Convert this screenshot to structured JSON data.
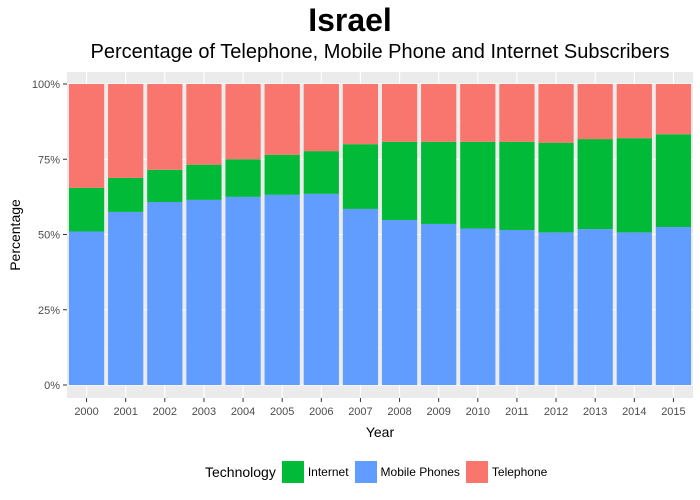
{
  "chart_data": {
    "type": "bar",
    "stacked": true,
    "title": "Israel",
    "subtitle": "Percentage of Telephone, Mobile Phone and Internet Subscribers",
    "xlabel": "Year",
    "ylabel": "Percentage",
    "ylim": [
      0,
      100
    ],
    "yticks": [
      "0%",
      "25%",
      "50%",
      "75%",
      "100%"
    ],
    "ytick_values": [
      0,
      25,
      50,
      75,
      100
    ],
    "categories": [
      "2000",
      "2001",
      "2002",
      "2003",
      "2004",
      "2005",
      "2006",
      "2007",
      "2008",
      "2009",
      "2010",
      "2011",
      "2012",
      "2013",
      "2014",
      "2015"
    ],
    "series": [
      {
        "name": "Mobile Phones",
        "color": "#619CFF",
        "values": [
          51.0,
          57.5,
          60.8,
          61.5,
          62.5,
          63.2,
          63.5,
          58.5,
          54.8,
          53.5,
          52.0,
          51.5,
          50.7,
          51.8,
          50.7,
          52.5
        ]
      },
      {
        "name": "Internet",
        "color": "#00BA38",
        "values": [
          14.5,
          11.3,
          10.7,
          11.7,
          12.5,
          13.3,
          14.2,
          21.5,
          26.0,
          27.3,
          28.8,
          29.3,
          29.8,
          29.9,
          31.3,
          30.8
        ]
      },
      {
        "name": "Telephone",
        "color": "#F8766D",
        "values": [
          34.5,
          31.2,
          28.5,
          26.8,
          25.0,
          23.5,
          22.3,
          20.0,
          19.2,
          19.2,
          19.2,
          19.2,
          19.5,
          18.3,
          18.0,
          16.7
        ]
      }
    ],
    "legend": {
      "title": "Technology",
      "position": "bottom",
      "items": [
        {
          "label": "Internet",
          "color": "#00BA38"
        },
        {
          "label": "Mobile Phones",
          "color": "#619CFF"
        },
        {
          "label": "Telephone",
          "color": "#F8766D"
        }
      ]
    },
    "panel_background": "#EBEBEB",
    "grid": true
  }
}
